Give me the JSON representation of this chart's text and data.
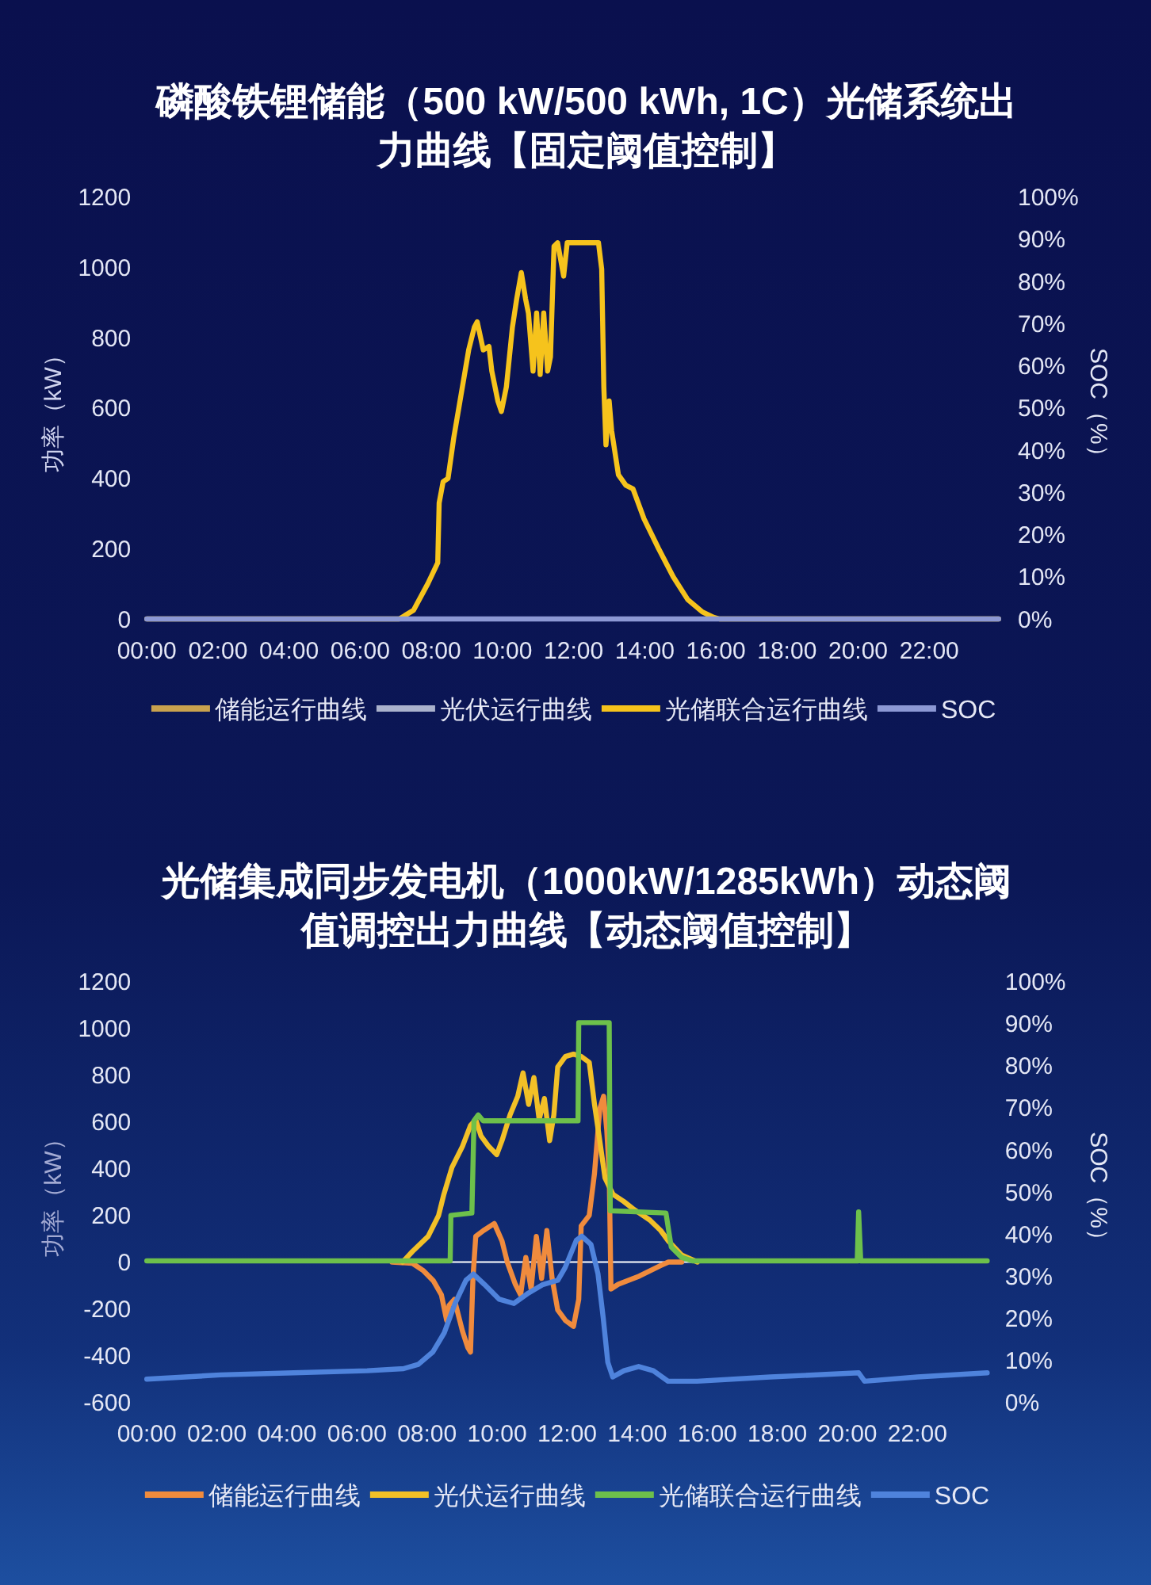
{
  "chart_data": [
    {
      "type": "line",
      "title": "磷酸铁锂储能（500 kW/500 kWh, 1C）光储系统出力曲线【固定阈值控制】",
      "ylabel": "功率（kW）",
      "y2label": "SOC（%）",
      "xlim": [
        0,
        24
      ],
      "xticks": [
        {
          "value": 0,
          "label": "00:00"
        },
        {
          "value": 2,
          "label": "02:00"
        },
        {
          "value": 4,
          "label": "04:00"
        },
        {
          "value": 6,
          "label": "06:00"
        },
        {
          "value": 8,
          "label": "08:00"
        },
        {
          "value": 10,
          "label": "10:00"
        },
        {
          "value": 12,
          "label": "12:00"
        },
        {
          "value": 14,
          "label": "14:00"
        },
        {
          "value": 16,
          "label": "16:00"
        },
        {
          "value": 18,
          "label": "18:00"
        },
        {
          "value": 20,
          "label": "20:00"
        },
        {
          "value": 22,
          "label": "22:00"
        }
      ],
      "ylim": [
        0,
        1200
      ],
      "yticks": [
        0,
        200,
        400,
        600,
        800,
        1000,
        1200
      ],
      "y2lim": [
        0,
        100
      ],
      "y2ticks": [
        {
          "value": 0,
          "label": "0%"
        },
        {
          "value": 10,
          "label": "10%"
        },
        {
          "value": 20,
          "label": "20%"
        },
        {
          "value": 30,
          "label": "30%"
        },
        {
          "value": 40,
          "label": "40%"
        },
        {
          "value": 50,
          "label": "50%"
        },
        {
          "value": 60,
          "label": "60%"
        },
        {
          "value": 70,
          "label": "70%"
        },
        {
          "value": 80,
          "label": "80%"
        },
        {
          "value": 90,
          "label": "90%"
        },
        {
          "value": 100,
          "label": "100%"
        }
      ],
      "legend": "bottom",
      "series": [
        {
          "name": "储能运行曲线",
          "color": "#c9a24e"
        },
        {
          "name": "光伏运行曲线",
          "color": "#aab2cc"
        },
        {
          "name": "光储联合运行曲线",
          "color": "#f6c31c",
          "x": [
            0,
            7.1,
            7.5,
            7.9,
            8.18,
            8.22,
            8.33,
            8.47,
            8.63,
            8.84,
            9.05,
            9.21,
            9.29,
            9.46,
            9.62,
            9.7,
            9.87,
            9.97,
            10.11,
            10.28,
            10.4,
            10.53,
            10.65,
            10.73,
            10.86,
            10.96,
            11.06,
            11.16,
            11.27,
            11.35,
            11.45,
            11.55,
            11.72,
            11.82,
            12.7,
            12.79,
            12.85,
            12.91,
            13.0,
            13.07,
            13.26,
            13.47,
            13.67,
            13.98,
            14.39,
            14.8,
            15.21,
            15.62,
            15.93,
            16.1,
            23.95
          ],
          "values": [
            0,
            0,
            25,
            100,
            160,
            330,
            390,
            400,
            515,
            640,
            765,
            830,
            845,
            765,
            775,
            705,
            620,
            590,
            660,
            830,
            910,
            985,
            910,
            870,
            705,
            870,
            695,
            870,
            705,
            745,
            1060,
            1070,
            975,
            1070,
            1070,
            995,
            660,
            495,
            620,
            535,
            410,
            380,
            370,
            285,
            200,
            120,
            55,
            20,
            5,
            0,
            0
          ]
        },
        {
          "name": "SOC",
          "color": "#8c98d4",
          "axis": "y2",
          "x": [
            0,
            23.95
          ],
          "values": [
            0,
            0
          ]
        }
      ]
    },
    {
      "type": "line",
      "title": "光储集成同步发电机（1000kW/1285kWh）动态阈值调控出力曲线【动态阈值控制】",
      "ylabel": "功率（kW）",
      "y2label": "SOC（%）",
      "xlim": [
        0,
        24
      ],
      "xticks": [
        {
          "value": 0,
          "label": "00:00"
        },
        {
          "value": 2,
          "label": "02:00"
        },
        {
          "value": 4,
          "label": "04:00"
        },
        {
          "value": 6,
          "label": "06:00"
        },
        {
          "value": 8,
          "label": "08:00"
        },
        {
          "value": 10,
          "label": "10:00"
        },
        {
          "value": 12,
          "label": "12:00"
        },
        {
          "value": 14,
          "label": "14:00"
        },
        {
          "value": 16,
          "label": "16:00"
        },
        {
          "value": 18,
          "label": "18:00"
        },
        {
          "value": 20,
          "label": "20:00"
        },
        {
          "value": 22,
          "label": "22:00"
        }
      ],
      "ylim": [
        -600,
        1200
      ],
      "yticks": [
        -600,
        -400,
        -200,
        0,
        200,
        400,
        600,
        800,
        1000,
        1200
      ],
      "y2lim": [
        0,
        100
      ],
      "y2ticks": [
        {
          "value": 0,
          "label": "0%"
        },
        {
          "value": 10,
          "label": "10%"
        },
        {
          "value": 20,
          "label": "20%"
        },
        {
          "value": 30,
          "label": "30%"
        },
        {
          "value": 40,
          "label": "40%"
        },
        {
          "value": 50,
          "label": "50%"
        },
        {
          "value": 60,
          "label": "60%"
        },
        {
          "value": 70,
          "label": "70%"
        },
        {
          "value": 80,
          "label": "80%"
        },
        {
          "value": 90,
          "label": "90%"
        },
        {
          "value": 100,
          "label": "100%"
        }
      ],
      "legend": "bottom",
      "series": [
        {
          "name": "储能运行曲线",
          "color": "#f08b3d",
          "x": [
            7.0,
            7.58,
            7.88,
            8.18,
            8.41,
            8.56,
            8.63,
            8.78,
            9.01,
            9.16,
            9.24,
            9.31,
            9.39,
            9.61,
            9.92,
            10.14,
            10.29,
            10.52,
            10.67,
            10.82,
            10.97,
            11.12,
            11.27,
            11.42,
            11.57,
            11.73,
            11.95,
            12.18,
            12.33,
            12.4,
            12.63,
            12.78,
            12.93,
            13.04,
            13.13,
            13.2,
            13.25,
            13.46,
            14.06,
            14.67,
            14.89,
            15.27
          ],
          "values": [
            0,
            -5,
            -35,
            -80,
            -140,
            -250,
            -185,
            -160,
            -295,
            -365,
            -385,
            -70,
            110,
            135,
            165,
            90,
            0,
            -95,
            -140,
            20,
            -115,
            110,
            -70,
            135,
            -70,
            -205,
            -250,
            -275,
            -160,
            155,
            200,
            380,
            655,
            710,
            565,
            380,
            -115,
            -95,
            -60,
            -15,
            0,
            0
          ]
        },
        {
          "name": "光伏运行曲线",
          "color": "#f2c027",
          "x": [
            7.3,
            7.58,
            8.03,
            8.33,
            8.48,
            8.71,
            9.01,
            9.24,
            9.39,
            9.54,
            9.76,
            9.99,
            10.14,
            10.37,
            10.59,
            10.74,
            10.9,
            11.05,
            11.2,
            11.35,
            11.5,
            11.62,
            11.73,
            11.95,
            12.18,
            12.4,
            12.63,
            12.78,
            12.93,
            13.08,
            13.31,
            13.61,
            13.91,
            14.36,
            14.67,
            14.89,
            15.27,
            15.72
          ],
          "values": [
            0,
            45,
            110,
            200,
            290,
            405,
            495,
            585,
            610,
            540,
            495,
            460,
            520,
            630,
            710,
            810,
            675,
            790,
            610,
            700,
            520,
            630,
            835,
            880,
            890,
            880,
            855,
            675,
            520,
            360,
            290,
            260,
            225,
            180,
            135,
            90,
            30,
            0
          ]
        },
        {
          "name": "光储联合运行曲线",
          "color": "#6dc04b",
          "x": [
            0,
            8.66,
            8.68,
            9.28,
            9.34,
            9.46,
            9.6,
            12.31,
            12.33,
            13.2,
            13.23,
            14.82,
            14.97,
            15.27,
            15.57,
            20.28,
            20.32,
            20.38,
            23.99
          ],
          "values": [
            5,
            5,
            200,
            210,
            605,
            630,
            605,
            605,
            1025,
            1025,
            220,
            210,
            65,
            20,
            5,
            5,
            215,
            5,
            5
          ]
        },
        {
          "name": "SOC",
          "color": "#4f83dc",
          "axis": "y2",
          "x": [
            0,
            2.1,
            4.19,
            6.29,
            7.33,
            7.75,
            8.17,
            8.49,
            8.8,
            9.11,
            9.32,
            9.64,
            10.06,
            10.48,
            10.9,
            11.31,
            11.73,
            11.94,
            12.26,
            12.42,
            12.68,
            12.88,
            13.03,
            13.16,
            13.3,
            13.62,
            14.04,
            14.46,
            14.88,
            15.71,
            17.8,
            20.32,
            20.49,
            22.0,
            23.99
          ],
          "values": [
            5.5,
            6.5,
            7,
            7.5,
            8,
            9,
            12,
            16.5,
            23.5,
            29,
            30.5,
            28,
            24.5,
            23.5,
            26,
            28,
            29,
            32,
            38.5,
            39.5,
            37.5,
            30.5,
            20,
            9.5,
            6,
            7.5,
            8.5,
            7.5,
            5,
            5,
            6,
            7,
            5,
            6,
            7
          ]
        }
      ]
    }
  ]
}
